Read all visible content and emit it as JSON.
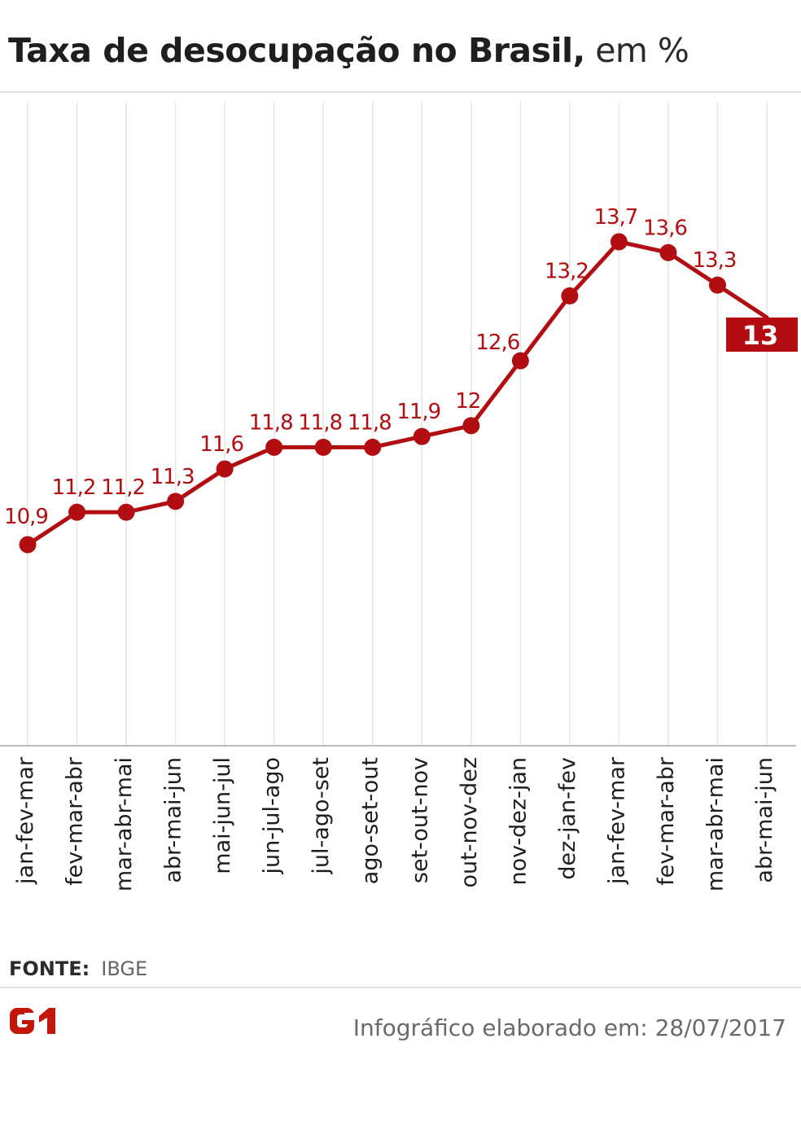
{
  "header": {
    "title_bold": "Taxa de desocupação no Brasil,",
    "title_light": " em %"
  },
  "chart_data": {
    "type": "line",
    "title": "Taxa de desocupação no Brasil, em %",
    "categories": [
      "jan-fev-mar",
      "fev-mar-abr",
      "mar-abr-mai",
      "abr-mai-jun",
      "mai-jun-jul",
      "jun-jul-ago",
      "jul-ago-set",
      "ago-set-out",
      "set-out-nov",
      "out-nov-dez",
      "nov-dez-jan",
      "dez-jan-fev",
      "jan-fev-mar",
      "fev-mar-abr",
      "mar-abr-mai",
      "abr-mai-jun"
    ],
    "values": [
      10.9,
      11.2,
      11.2,
      11.3,
      11.6,
      11.8,
      11.8,
      11.8,
      11.9,
      12,
      12.6,
      13.2,
      13.7,
      13.6,
      13.3,
      13
    ],
    "value_labels": [
      "10,9",
      "11,2",
      "11,2",
      "11,3",
      "11,6",
      "11,8",
      "11,8",
      "11,8",
      "11,9",
      "12",
      "12,6",
      "13,2",
      "13,7",
      "13,6",
      "13,3",
      "13"
    ],
    "highlight_last": true,
    "grid": "vertical",
    "colors": {
      "line": "#b20d10",
      "label": "#b20d10",
      "highlight_bg": "#b20d10",
      "highlight_text": "#ffffff",
      "grid": "#e6e6e6",
      "axis": "#bdbdbd",
      "tick_label": "#1e1e1e"
    }
  },
  "source": {
    "label": "FONTE:",
    "value": "IBGE"
  },
  "logo": {
    "text": "G1",
    "color": "#c4170c"
  },
  "footer": {
    "note": "Infográfico elaborado em: 28/07/2017"
  }
}
